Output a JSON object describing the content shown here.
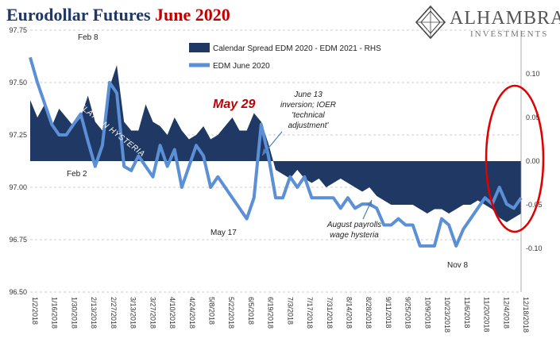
{
  "title": {
    "main": "Eurodollar Futures",
    "accent": "June 2020"
  },
  "logo": {
    "brand": "ALHAMBRA",
    "sub": "INVESTMENTS"
  },
  "colors": {
    "spread": "#1f3864",
    "edm": "#5b8fd6",
    "title_accent": "#c00000",
    "circle": "#e00000"
  },
  "chart_data": {
    "type": "area+line",
    "legend": {
      "placement": "top-center",
      "items": [
        "Calendar Spread EDM 2020 - EDM 2021 - RHS",
        "EDM June 2020"
      ]
    },
    "left_axis": {
      "ylim": [
        96.5,
        97.75
      ],
      "ticks": [
        "96.50",
        "96.75",
        "97.00",
        "97.25",
        "97.50",
        "97.75"
      ]
    },
    "right_axis": {
      "ylim": [
        -0.15,
        0.15
      ],
      "ticks": [
        "-0.10",
        "-0.05",
        "0.00",
        "0.05",
        "0.10"
      ]
    },
    "x_ticks": [
      "1/2/2018",
      "1/16/2018",
      "1/30/2018",
      "2/13/2018",
      "2/27/2018",
      "3/13/2018",
      "3/27/2018",
      "4/10/2018",
      "4/24/2018",
      "5/8/2018",
      "5/22/2018",
      "6/5/2018",
      "6/19/2018",
      "7/3/2018",
      "7/17/2018",
      "7/31/2018",
      "8/14/2018",
      "8/28/2018",
      "9/11/2018",
      "9/25/2018",
      "10/9/2018",
      "10/23/2018",
      "11/6/2018",
      "11/20/2018",
      "12/4/2018",
      "12/18/2018"
    ],
    "edm_june_2020": [
      [
        0,
        97.62
      ],
      [
        1,
        97.5
      ],
      [
        2,
        97.4
      ],
      [
        3,
        97.3
      ],
      [
        4,
        97.25
      ],
      [
        5,
        97.25
      ],
      [
        6,
        97.3
      ],
      [
        7,
        97.35
      ],
      [
        8,
        97.22
      ],
      [
        9,
        97.1
      ],
      [
        10,
        97.2
      ],
      [
        11,
        97.5
      ],
      [
        12,
        97.45
      ],
      [
        13,
        97.1
      ],
      [
        14,
        97.08
      ],
      [
        15,
        97.15
      ],
      [
        16,
        97.1
      ],
      [
        17,
        97.05
      ],
      [
        18,
        97.2
      ],
      [
        19,
        97.1
      ],
      [
        20,
        97.18
      ],
      [
        21,
        97.0
      ],
      [
        22,
        97.1
      ],
      [
        23,
        97.2
      ],
      [
        24,
        97.15
      ],
      [
        25,
        97.0
      ],
      [
        26,
        97.05
      ],
      [
        27,
        97.0
      ],
      [
        28,
        96.95
      ],
      [
        29,
        96.9
      ],
      [
        30,
        96.85
      ],
      [
        31,
        96.95
      ],
      [
        32,
        97.3
      ],
      [
        33,
        97.15
      ],
      [
        34,
        96.95
      ],
      [
        35,
        96.95
      ],
      [
        36,
        97.05
      ],
      [
        37,
        97.0
      ],
      [
        38,
        97.05
      ],
      [
        39,
        96.95
      ],
      [
        40,
        96.95
      ],
      [
        41,
        96.95
      ],
      [
        42,
        96.95
      ],
      [
        43,
        96.9
      ],
      [
        44,
        96.95
      ],
      [
        45,
        96.9
      ],
      [
        46,
        96.92
      ],
      [
        47,
        96.92
      ],
      [
        48,
        96.9
      ],
      [
        49,
        96.82
      ],
      [
        50,
        96.82
      ],
      [
        51,
        96.85
      ],
      [
        52,
        96.82
      ],
      [
        53,
        96.82
      ],
      [
        54,
        96.72
      ],
      [
        55,
        96.72
      ],
      [
        56,
        96.72
      ],
      [
        57,
        96.85
      ],
      [
        58,
        96.82
      ],
      [
        59,
        96.72
      ],
      [
        60,
        96.8
      ],
      [
        61,
        96.85
      ],
      [
        62,
        96.9
      ],
      [
        63,
        96.95
      ],
      [
        64,
        96.92
      ],
      [
        65,
        97.0
      ],
      [
        66,
        96.92
      ],
      [
        67,
        96.9
      ],
      [
        68,
        96.95
      ]
    ],
    "calendar_spread": [
      [
        0,
        0.07
      ],
      [
        1,
        0.05
      ],
      [
        2,
        0.065
      ],
      [
        3,
        0.04
      ],
      [
        4,
        0.06
      ],
      [
        5,
        0.05
      ],
      [
        6,
        0.04
      ],
      [
        7,
        0.05
      ],
      [
        8,
        0.075
      ],
      [
        9,
        0.045
      ],
      [
        10,
        0.035
      ],
      [
        11,
        0.085
      ],
      [
        12,
        0.11
      ],
      [
        13,
        0.045
      ],
      [
        14,
        0.035
      ],
      [
        15,
        0.035
      ],
      [
        16,
        0.065
      ],
      [
        17,
        0.045
      ],
      [
        18,
        0.04
      ],
      [
        19,
        0.03
      ],
      [
        20,
        0.05
      ],
      [
        21,
        0.035
      ],
      [
        22,
        0.025
      ],
      [
        23,
        0.03
      ],
      [
        24,
        0.04
      ],
      [
        25,
        0.025
      ],
      [
        26,
        0.03
      ],
      [
        27,
        0.04
      ],
      [
        28,
        0.05
      ],
      [
        29,
        0.035
      ],
      [
        30,
        0.035
      ],
      [
        31,
        0.055
      ],
      [
        32,
        0.045
      ],
      [
        33,
        0.02
      ],
      [
        34,
        -0.01
      ],
      [
        35,
        -0.015
      ],
      [
        36,
        -0.02
      ],
      [
        37,
        -0.01
      ],
      [
        38,
        -0.02
      ],
      [
        39,
        -0.025
      ],
      [
        40,
        -0.02
      ],
      [
        41,
        -0.03
      ],
      [
        42,
        -0.025
      ],
      [
        43,
        -0.02
      ],
      [
        44,
        -0.025
      ],
      [
        45,
        -0.03
      ],
      [
        46,
        -0.035
      ],
      [
        47,
        -0.03
      ],
      [
        48,
        -0.04
      ],
      [
        49,
        -0.045
      ],
      [
        50,
        -0.05
      ],
      [
        51,
        -0.05
      ],
      [
        52,
        -0.05
      ],
      [
        53,
        -0.05
      ],
      [
        54,
        -0.055
      ],
      [
        55,
        -0.06
      ],
      [
        56,
        -0.055
      ],
      [
        57,
        -0.055
      ],
      [
        58,
        -0.06
      ],
      [
        59,
        -0.055
      ],
      [
        60,
        -0.05
      ],
      [
        61,
        -0.05
      ],
      [
        62,
        -0.045
      ],
      [
        63,
        -0.05
      ],
      [
        64,
        -0.055
      ],
      [
        65,
        -0.065
      ],
      [
        66,
        -0.07
      ],
      [
        67,
        -0.065
      ],
      [
        68,
        -0.06
      ]
    ],
    "annotations": {
      "feb8": "Feb 8",
      "feb2": "Feb 2",
      "may29": "May 29",
      "may17": "May 17",
      "nov8": "Nov 8",
      "inflation": "INFLATION HYSTERIA",
      "june13": [
        "June 13",
        "inversion; IOER",
        "'technical",
        "adjustment'"
      ],
      "august": [
        "August payrolls",
        "wage hysteria"
      ]
    }
  }
}
